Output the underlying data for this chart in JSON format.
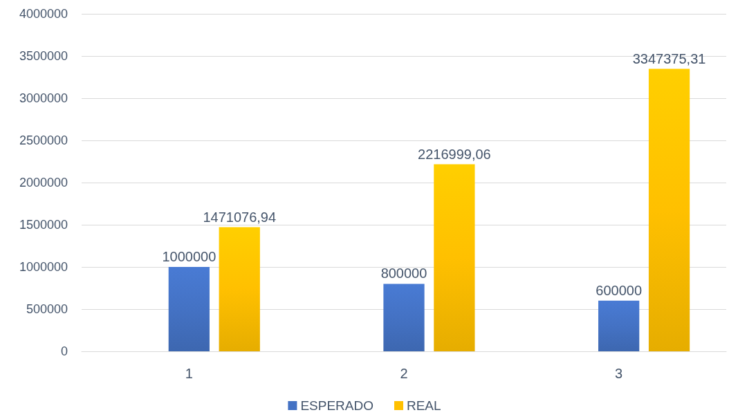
{
  "chart_data": {
    "type": "bar",
    "categories": [
      "1",
      "2",
      "3"
    ],
    "series": [
      {
        "color": "#a9c4a0",
        "values": [
          0,
          0,
          0
        ]
      },
      {
        "name": "ESPERADO",
        "color": "#4472c4",
        "values": [
          1000000,
          800000,
          600000
        ],
        "value_labels": [
          "1000000",
          "800000",
          "600000"
        ]
      },
      {
        "name": "REAL",
        "color": "#ffc000",
        "values": [
          1471076.94,
          2216999.06,
          3347375.31
        ],
        "value_labels": [
          "1471076,94",
          "2216999,06",
          "3347375,31"
        ]
      }
    ],
    "ylim": [
      0,
      4000000
    ],
    "yticks": [
      0,
      500000,
      1000000,
      1500000,
      2000000,
      2500000,
      3000000,
      3500000,
      4000000
    ],
    "grid": "y",
    "legend": "bottom"
  }
}
